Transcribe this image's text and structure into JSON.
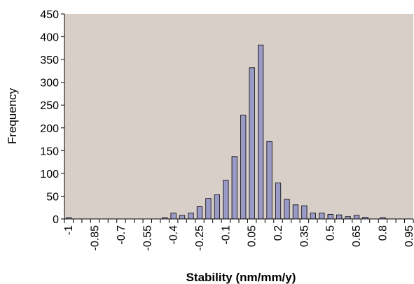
{
  "chart_data": {
    "type": "bar",
    "xlabel": "Stability (nm/mm/y)",
    "ylabel": "Frequency",
    "ylim": [
      0,
      450
    ],
    "y_ticks": [
      0,
      50,
      100,
      150,
      200,
      250,
      300,
      350,
      400,
      450
    ],
    "x_tick_labels": [
      "-1",
      "-0.85",
      "-0.7",
      "-0.55",
      "-0.4",
      "-0.25",
      "-0.1",
      "0.05",
      "0.2",
      "0.35",
      "0.5",
      "0.65",
      "0.8",
      "0.95"
    ],
    "grid": false,
    "colors": {
      "plot_background": "#d8d0c8",
      "bar_fill": "#9a9ac6",
      "bar_stroke": "#000000"
    },
    "categories": [
      "-1",
      "-0.95",
      "-0.9",
      "-0.85",
      "-0.8",
      "-0.75",
      "-0.7",
      "-0.65",
      "-0.6",
      "-0.55",
      "-0.5",
      "-0.45",
      "-0.4",
      "-0.35",
      "-0.3",
      "-0.25",
      "-0.2",
      "-0.15",
      "-0.1",
      "-0.05",
      "0",
      "0.05",
      "0.1",
      "0.15",
      "0.2",
      "0.25",
      "0.3",
      "0.35",
      "0.4",
      "0.45",
      "0.5",
      "0.55",
      "0.6",
      "0.65",
      "0.7",
      "0.75",
      "0.8",
      "0.85",
      "0.9",
      "0.95"
    ],
    "values": [
      3,
      0,
      0,
      0,
      0,
      0,
      0,
      0,
      0,
      0,
      0,
      3,
      13,
      8,
      13,
      27,
      45,
      53,
      85,
      137,
      228,
      332,
      382,
      170,
      79,
      43,
      31,
      29,
      13,
      13,
      10,
      9,
      5,
      8,
      4,
      0,
      3,
      0,
      0,
      0
    ]
  }
}
